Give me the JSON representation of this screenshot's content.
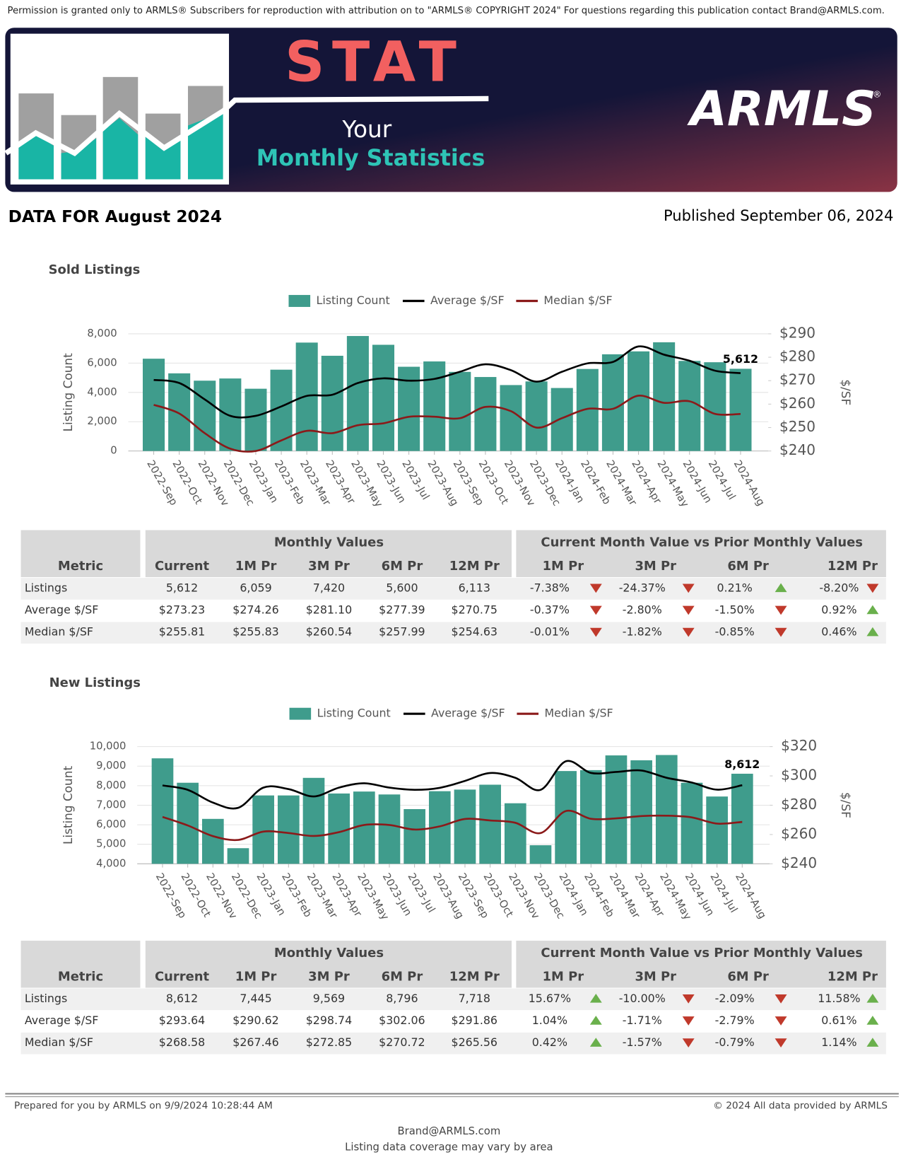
{
  "notice": "Permission is granted only to ARMLS® Subscribers for reproduction with attribution on to \"ARMLS® COPYRIGHT 2024\" For questions regarding this publication contact Brand@ARMLS.com.",
  "banner": {
    "stat": "STAT",
    "your": "Your",
    "monthly": "Monthly Statistics",
    "logo": "ARMLS",
    "logo_mark": "®"
  },
  "data_for": "DATA FOR August 2024",
  "published": "Published September 06, 2024",
  "chart_data": [
    {
      "type": "bar",
      "title": "Sold Listings",
      "y_label": "Listing Count",
      "y2_label": "$/SF",
      "grid": true,
      "categories": [
        "2022-Sep",
        "2022-Oct",
        "2022-Nov",
        "2022-Dec",
        "2023-Jan",
        "2023-Feb",
        "2023-Mar",
        "2023-Apr",
        "2023-May",
        "2023-Jun",
        "2023-Jul",
        "2023-Aug",
        "2023-Sep",
        "2023-Oct",
        "2023-Nov",
        "2023-Dec",
        "2024-Jan",
        "2024-Feb",
        "2024-Mar",
        "2024-Apr",
        "2024-May",
        "2024-Jun",
        "2024-Jul",
        "2024-Aug"
      ],
      "ylim": [
        0,
        8000
      ],
      "yticks": [
        0,
        {
          "value": 2000,
          "label": "2,000"
        },
        {
          "value": 4000,
          "label": "4,000"
        },
        {
          "value": 6000,
          "label": "6,000"
        },
        {
          "value": 8000,
          "label": "8,000"
        }
      ],
      "y2lim": [
        240,
        290
      ],
      "y2ticks": [
        {
          "value": 240,
          "label": "$240"
        },
        {
          "value": 250,
          "label": "$250"
        },
        {
          "value": 260,
          "label": "$260"
        },
        {
          "value": 270,
          "label": "$270"
        },
        {
          "value": 280,
          "label": "$280"
        },
        {
          "value": 290,
          "label": "$290"
        }
      ],
      "series": [
        {
          "name": "Listing Count",
          "type": "bar",
          "color": "#3f9c8c",
          "values": [
            6300,
            5300,
            4800,
            4950,
            4250,
            5550,
            7400,
            6500,
            7850,
            7250,
            5750,
            6113,
            5400,
            5050,
            4500,
            4750,
            4300,
            5600,
            6600,
            6800,
            7420,
            6150,
            6059,
            5612
          ],
          "value_labels": [
            null,
            null,
            null,
            null,
            null,
            null,
            null,
            null,
            null,
            null,
            null,
            null,
            null,
            null,
            null,
            null,
            null,
            null,
            null,
            null,
            null,
            null,
            null,
            "5,612"
          ]
        },
        {
          "name": "Average $/SF",
          "type": "line",
          "axis": "y2",
          "color": "#000000",
          "values": [
            270.3,
            269,
            262,
            255,
            255,
            259,
            263.5,
            264,
            269,
            271,
            270,
            270.75,
            273.8,
            277,
            274.5,
            269.6,
            273.8,
            277.39,
            278,
            284.6,
            281.1,
            278.5,
            274.26,
            273.23
          ]
        },
        {
          "name": "Median $/SF",
          "type": "line",
          "axis": "y2",
          "color": "#8b1a1a",
          "values": [
            259.7,
            256,
            247.6,
            241,
            240,
            244.5,
            248.6,
            247.6,
            251,
            251.8,
            254.6,
            254.63,
            254,
            258.8,
            257,
            250,
            254,
            257.99,
            258,
            263.6,
            260.54,
            261.2,
            255.83,
            255.81
          ]
        }
      ]
    },
    {
      "type": "bar",
      "title": "New Listings",
      "y_label": "Listing Count",
      "y2_label": "$/SF",
      "grid": true,
      "categories": [
        "2022-Sep",
        "2022-Oct",
        "2022-Nov",
        "2022-Dec",
        "2023-Jan",
        "2023-Feb",
        "2023-Mar",
        "2023-Apr",
        "2023-May",
        "2023-Jun",
        "2023-Jul",
        "2023-Aug",
        "2023-Sep",
        "2023-Oct",
        "2023-Nov",
        "2023-Dec",
        "2024-Jan",
        "2024-Feb",
        "2024-Mar",
        "2024-Apr",
        "2024-May",
        "2024-Jun",
        "2024-Jul",
        "2024-Aug"
      ],
      "ylim": [
        4000,
        10000
      ],
      "yticks": [
        {
          "value": 4000,
          "label": "4,000"
        },
        {
          "value": 5000,
          "label": "5,000"
        },
        {
          "value": 6000,
          "label": "6,000"
        },
        {
          "value": 7000,
          "label": "7,000"
        },
        {
          "value": 8000,
          "label": "8,000"
        },
        {
          "value": 9000,
          "label": "9,000"
        },
        {
          "value": 10000,
          "label": "10,000"
        }
      ],
      "y2lim": [
        240,
        320
      ],
      "y2ticks": [
        {
          "value": 240,
          "label": "$240"
        },
        {
          "value": 260,
          "label": "$260"
        },
        {
          "value": 280,
          "label": "$280"
        },
        {
          "value": 300,
          "label": "$300"
        },
        {
          "value": 320,
          "label": "$320"
        }
      ],
      "series": [
        {
          "name": "Listing Count",
          "type": "bar",
          "color": "#3f9c8c",
          "values": [
            9400,
            8150,
            6300,
            4800,
            7500,
            7500,
            8400,
            7600,
            7700,
            7550,
            6800,
            7718,
            7800,
            8050,
            7100,
            4950,
            8750,
            8796,
            9550,
            9300,
            9569,
            8150,
            7445,
            8612
          ],
          "value_labels": [
            null,
            null,
            null,
            null,
            null,
            null,
            null,
            null,
            null,
            null,
            null,
            null,
            null,
            null,
            null,
            null,
            null,
            null,
            null,
            null,
            null,
            null,
            null,
            "8,612"
          ]
        },
        {
          "name": "Average $/SF",
          "type": "line",
          "axis": "y2",
          "color": "#000000",
          "values": [
            293.5,
            290.5,
            281.8,
            278.2,
            292,
            291,
            286,
            292,
            295,
            292,
            290.5,
            291.86,
            296.6,
            302,
            298.7,
            290.5,
            310,
            302.06,
            302.7,
            303.7,
            298.74,
            295.5,
            290.62,
            293.64
          ]
        },
        {
          "name": "Median $/SF",
          "type": "line",
          "axis": "y2",
          "color": "#8b1a1a",
          "values": [
            272,
            266.2,
            258.9,
            256.3,
            262,
            261,
            259,
            261.6,
            266.5,
            266.5,
            263.4,
            265.56,
            270.6,
            269.6,
            268,
            261,
            276,
            270.72,
            271,
            272.6,
            272.85,
            271.7,
            267.46,
            268.58
          ]
        }
      ]
    }
  ],
  "tables": [
    {
      "group_headers": [
        "Monthly Values",
        "Current Month Value vs Prior Monthly Values"
      ],
      "columns": [
        "Metric",
        "Current",
        "1M Pr",
        "3M Pr",
        "6M Pr",
        "12M Pr",
        "1M Pr",
        "3M Pr",
        "6M Pr",
        "12M Pr"
      ],
      "rows": [
        [
          "Listings",
          "5,612",
          "6,059",
          "7,420",
          "5,600",
          "6,113",
          "-7.38%",
          "-24.37%",
          "0.21%",
          "-8.20%"
        ],
        [
          "Average $/SF",
          "$273.23",
          "$274.26",
          "$281.10",
          "$277.39",
          "$270.75",
          "-0.37%",
          "-2.80%",
          "-1.50%",
          "0.92%"
        ],
        [
          "Median $/SF",
          "$255.81",
          "$255.83",
          "$260.54",
          "$257.99",
          "$254.63",
          "-0.01%",
          "-1.82%",
          "-0.85%",
          "0.46%"
        ]
      ]
    },
    {
      "group_headers": [
        "Monthly Values",
        "Current Month Value vs Prior Monthly Values"
      ],
      "columns": [
        "Metric",
        "Current",
        "1M Pr",
        "3M Pr",
        "6M Pr",
        "12M Pr",
        "1M Pr",
        "3M Pr",
        "6M Pr",
        "12M Pr"
      ],
      "rows": [
        [
          "Listings",
          "8,612",
          "7,445",
          "9,569",
          "8,796",
          "7,718",
          "15.67%",
          "-10.00%",
          "-2.09%",
          "11.58%"
        ],
        [
          "Average $/SF",
          "$293.64",
          "$290.62",
          "$298.74",
          "$302.06",
          "$291.86",
          "1.04%",
          "-1.71%",
          "-2.79%",
          "0.61%"
        ],
        [
          "Median $/SF",
          "$268.58",
          "$267.46",
          "$272.85",
          "$270.72",
          "$265.56",
          "0.42%",
          "-1.57%",
          "-0.79%",
          "1.14%"
        ]
      ]
    }
  ],
  "footer": {
    "prepared": "Prepared for you by ARMLS on 9/9/2024 10:28:44 AM",
    "copyright": "© 2024 All data provided by ARMLS",
    "email": "Brand@ARMLS.com",
    "coverage": "Listing data coverage may vary by area"
  }
}
